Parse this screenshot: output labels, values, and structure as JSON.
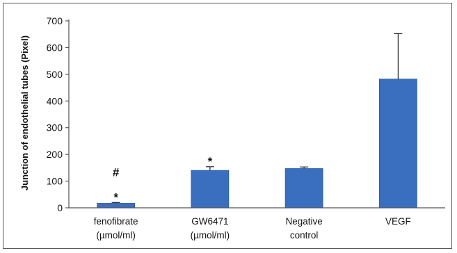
{
  "chart_data": {
    "type": "bar",
    "categories": [
      [
        "fenofibrate",
        "(µmol/ml)"
      ],
      [
        "GW6471",
        "(µmol/ml)"
      ],
      [
        "Negative",
        "control"
      ],
      [
        "VEGF"
      ]
    ],
    "values": [
      17,
      140,
      147,
      482
    ],
    "error_plus": [
      3,
      14,
      6,
      170
    ],
    "annotations": [
      [
        "#",
        "*"
      ],
      [
        "*"
      ],
      [],
      []
    ],
    "title": "",
    "xlabel": "",
    "ylabel": "Junction of endothelial tubes (Pixel)",
    "ylim": [
      0,
      700
    ],
    "yticks": [
      0,
      100,
      200,
      300,
      400,
      500,
      600,
      700
    ],
    "grid": false,
    "legend": "none",
    "bar_color": "#3a6fbf",
    "bar_edge_color": "#2b5a9e",
    "error_color": "#222222"
  }
}
